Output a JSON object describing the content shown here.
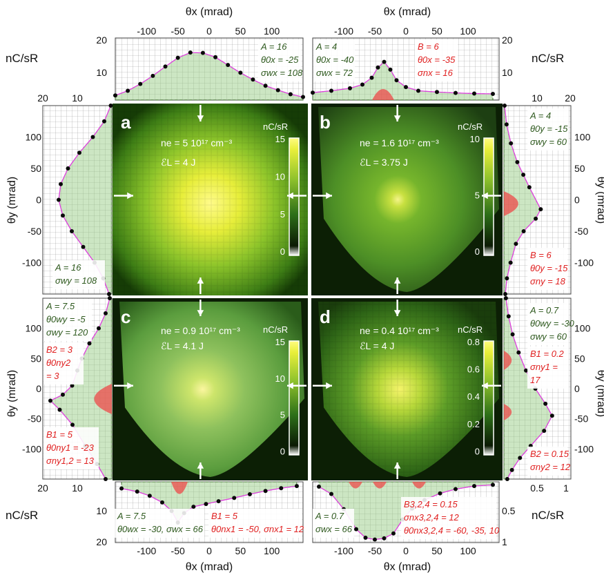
{
  "labels": {
    "theta_x_mrad": "θx (mrad)",
    "theta_y_mrad": "θy (mrad)",
    "unit": "nC/sR",
    "cbar_unit": "nC/sR"
  },
  "panels": {
    "a": {
      "letter": "a",
      "ne": "ne = 5 10¹⁷ cm⁻³",
      "el": "ℰL = 4 J",
      "cbar_ticks": [
        "15",
        "10",
        "5",
        "0"
      ]
    },
    "b": {
      "letter": "b",
      "ne": "ne = 1.6 10¹⁷ cm⁻³",
      "el": "ℰL = 3.75 J",
      "cbar_ticks": [
        "10",
        "5",
        "0"
      ]
    },
    "c": {
      "letter": "c",
      "ne": "ne = 0.9 10¹⁷ cm⁻³",
      "el": "ℰL = 4.1 J",
      "cbar_ticks": [
        "15",
        "10",
        "5",
        "0"
      ]
    },
    "d": {
      "letter": "d",
      "ne": "ne = 0.4 10¹⁷ cm⁻³",
      "el": "ℰL = 4 J",
      "cbar_ticks": [
        "0.8",
        "0.6",
        "0.4",
        "0.2",
        "0"
      ]
    }
  },
  "annotations": {
    "top_left": [
      "A = 16",
      "θ0x = -25",
      "σwx = 108"
    ],
    "top_right_green": [
      "A = 4",
      "θ0x = -40",
      "σwx = 72"
    ],
    "top_right_red": [
      "B = 6",
      "θ0x = -35",
      "σnx = 16"
    ],
    "left_top": [
      "A = 16",
      "σwy = 108"
    ],
    "right_top": [
      "A = 4",
      "θ0y = -15",
      "σwy = 60"
    ],
    "right_top_red": [
      "B = 6",
      "θ0y = -15",
      "σny = 18"
    ],
    "left_bottom_green": [
      "A = 7.5",
      "θ0wy = -5",
      "σwy = 120"
    ],
    "left_bottom_red1": [
      "B2 = 3",
      "θ0ny2",
      "= 3"
    ],
    "left_bottom_red2": [
      "B1 = 5",
      "θ0ny1 = -23",
      "σny1,2 = 13"
    ],
    "right_bottom_green": [
      "A = 0.7",
      "θ0wy = -30",
      "σwy = 60"
    ],
    "right_bottom_red1": [
      "B1 = 0.2",
      "σny1 =",
      "17"
    ],
    "right_bottom_red2": [
      "B2 = 0.15",
      "σny2 = 12"
    ],
    "bottom_left_green": [
      "A = 7.5",
      "θ0wx = -30, σwx = 66"
    ],
    "bottom_left_red": [
      "B1 = 5",
      "θ0nx1 = -50,  σnx1 = 12"
    ],
    "bottom_right_green": [
      "A = 0.7",
      "σwx = 66"
    ],
    "bottom_right_red": [
      "B3,2,4 = 0.15",
      "σnx3,2,4 = 12",
      "θ0nx3,2,4 = -60, -35, 10"
    ]
  },
  "chart_data": [
    {
      "type": "heatmap",
      "panel": "a",
      "xlabel": "θx (mrad)",
      "ylabel": "θy (mrad)",
      "xlim": [
        -150,
        150
      ],
      "ylim": [
        -150,
        150
      ],
      "clim": [
        0,
        16
      ],
      "fit": {
        "A": 16,
        "theta0x": -25,
        "sigma_wx": 108,
        "sigma_wy": 108
      }
    },
    {
      "type": "heatmap",
      "panel": "b",
      "xlim": [
        -150,
        150
      ],
      "ylim": [
        -150,
        150
      ],
      "clim": [
        0,
        13
      ],
      "fit": {
        "A": 4,
        "theta0x": -40,
        "sigma_wx": 72,
        "B": 6,
        "theta0x_n": -35,
        "sigma_nx": 16,
        "theta0y": -15,
        "sigma_wy": 60,
        "theta0y_n": -15,
        "sigma_ny": 18
      }
    },
    {
      "type": "heatmap",
      "panel": "c",
      "xlim": [
        -150,
        150
      ],
      "ylim": [
        -150,
        150
      ],
      "clim": [
        0,
        15.5
      ],
      "fit": {
        "A": 7.5,
        "theta0wx": -30,
        "sigma_wx": 66,
        "B1": 5,
        "theta0nx1": -50,
        "sigma_nx1": 12,
        "theta0wy": -5,
        "sigma_wy": 120,
        "B2": 3,
        "theta0ny2": 3,
        "theta0ny1": -23,
        "sigma_ny12": 13
      }
    },
    {
      "type": "heatmap",
      "panel": "d",
      "xlim": [
        -150,
        150
      ],
      "ylim": [
        -150,
        150
      ],
      "clim": [
        0,
        0.9
      ],
      "fit": {
        "A": 0.7,
        "sigma_wx": 66,
        "B324": 0.15,
        "sigma_nx324": 12,
        "theta0nx": [
          -60,
          -35,
          10
        ],
        "theta0wy": -30,
        "sigma_wy": 60,
        "B1": 0.2,
        "sigma_ny1": 17,
        "B2": 0.15,
        "sigma_ny2": 12
      }
    },
    {
      "type": "line",
      "panel": "top-a",
      "xlabel": "θx (mrad)",
      "ylabel": "nC/sR",
      "xlim": [
        -150,
        150
      ],
      "ylim": [
        0,
        20
      ],
      "xticks": [
        -100,
        -50,
        0,
        50,
        100
      ],
      "yticks": [
        10,
        20
      ],
      "x": [
        -150,
        -130,
        -110,
        -90,
        -70,
        -50,
        -30,
        -10,
        10,
        30,
        50,
        70,
        90,
        110,
        130,
        150
      ],
      "y": [
        1.5,
        3,
        5.2,
        7.8,
        10.8,
        13.6,
        15.3,
        15.2,
        13.8,
        11.3,
        8.8,
        6.6,
        4.6,
        3.2,
        1.9,
        1.0
      ]
    },
    {
      "type": "line",
      "panel": "top-b",
      "xlim": [
        -150,
        150
      ],
      "ylim": [
        0,
        20
      ],
      "xticks": [
        -100,
        -50,
        0,
        50,
        100
      ],
      "yticks": [
        10,
        20
      ],
      "x": [
        -150,
        -120,
        -90,
        -70,
        -55,
        -45,
        -35,
        -25,
        -15,
        0,
        20,
        50,
        80,
        110,
        140
      ],
      "y": [
        2.4,
        3.0,
        3.8,
        5.0,
        7.2,
        10.5,
        12.3,
        9.8,
        6.4,
        4.2,
        3.0,
        2.6,
        2.3,
        2.1,
        2.0
      ]
    },
    {
      "type": "line",
      "panel": "left-a",
      "xlabel": "nC/sR",
      "ylabel": "θy (mrad)",
      "xlim": [
        20,
        0
      ],
      "ylim": [
        -150,
        150
      ],
      "xticks": [
        20,
        10
      ],
      "yticks": [
        -100,
        -50,
        0,
        50,
        100
      ],
      "x": [
        0.3,
        2.2,
        5.5,
        9.4,
        12.7,
        14.8,
        15.4,
        14.2,
        11.6,
        8.3,
        5.0,
        2.5,
        0.8
      ],
      "y": [
        150,
        125,
        100,
        75,
        50,
        25,
        0,
        -25,
        -50,
        -75,
        -100,
        -125,
        -150
      ]
    },
    {
      "type": "line",
      "panel": "right-b",
      "xlabel": "nC/sR",
      "ylabel": "θy (mrad)",
      "xlim": [
        0,
        20
      ],
      "ylim": [
        -150,
        150
      ],
      "xticks": [
        10,
        20
      ],
      "yticks": [
        -100,
        -50,
        0,
        50,
        100
      ],
      "x": [
        0.2,
        0.8,
        2.1,
        4.0,
        5.8,
        7.6,
        11.0,
        9.5,
        5.9,
        3.6,
        2.0,
        0.9,
        0.4
      ],
      "y": [
        150,
        120,
        90,
        60,
        40,
        20,
        -15,
        -30,
        -50,
        -70,
        -100,
        -125,
        -150
      ]
    },
    {
      "type": "line",
      "panel": "left-c",
      "xlim": [
        20,
        0
      ],
      "ylim": [
        -150,
        150
      ],
      "xticks": [
        20,
        10
      ],
      "yticks": [
        -100,
        -50,
        0,
        50,
        100
      ],
      "x": [
        0.6,
        1.8,
        3.8,
        6.5,
        8.7,
        10.0,
        11.5,
        14.2,
        17.8,
        15.1,
        11.4,
        7.7,
        4.3,
        1.8
      ],
      "y": [
        150,
        125,
        100,
        75,
        50,
        30,
        5,
        -10,
        -20,
        -35,
        -60,
        -95,
        -125,
        -150
      ]
    },
    {
      "type": "line",
      "panel": "right-d",
      "xlim": [
        0,
        1
      ],
      "ylim": [
        -150,
        150
      ],
      "xticks": [
        0.5,
        1
      ],
      "yticks": [
        -100,
        -50,
        0,
        50,
        100
      ],
      "x": [
        0.03,
        0.07,
        0.13,
        0.22,
        0.33,
        0.47,
        0.62,
        0.72,
        0.6,
        0.4,
        0.24,
        0.12,
        0.05
      ],
      "y": [
        150,
        120,
        90,
        60,
        30,
        0,
        -25,
        -45,
        -70,
        -95,
        -115,
        -135,
        -150
      ]
    },
    {
      "type": "line",
      "panel": "bottom-c",
      "xlim": [
        -150,
        150
      ],
      "ylim": [
        20,
        0
      ],
      "xticks": [
        -100,
        -50,
        0,
        50,
        100
      ],
      "yticks": [
        10,
        20
      ],
      "x": [
        -140,
        -115,
        -95,
        -75,
        -60,
        -50,
        -40,
        -25,
        -5,
        15,
        40,
        65,
        90,
        115,
        140
      ],
      "y": [
        2.2,
        3.2,
        4.6,
        6.8,
        9.6,
        13.4,
        10.3,
        8.2,
        7.3,
        6.4,
        5.3,
        4.1,
        3.0,
        2.1,
        1.4
      ]
    },
    {
      "type": "line",
      "panel": "bottom-d",
      "xlim": [
        -150,
        150
      ],
      "ylim": [
        1,
        0
      ],
      "xticks": [
        -100,
        -50,
        0,
        50,
        100
      ],
      "yticks": [
        0.5,
        1
      ],
      "x": [
        -140,
        -120,
        -100,
        -80,
        -65,
        -50,
        -35,
        -20,
        -5,
        10,
        30,
        55,
        80,
        110,
        140
      ],
      "y": [
        0.08,
        0.2,
        0.45,
        0.78,
        0.92,
        0.95,
        0.93,
        0.85,
        0.62,
        0.44,
        0.3,
        0.19,
        0.12,
        0.07,
        0.05
      ]
    }
  ]
}
